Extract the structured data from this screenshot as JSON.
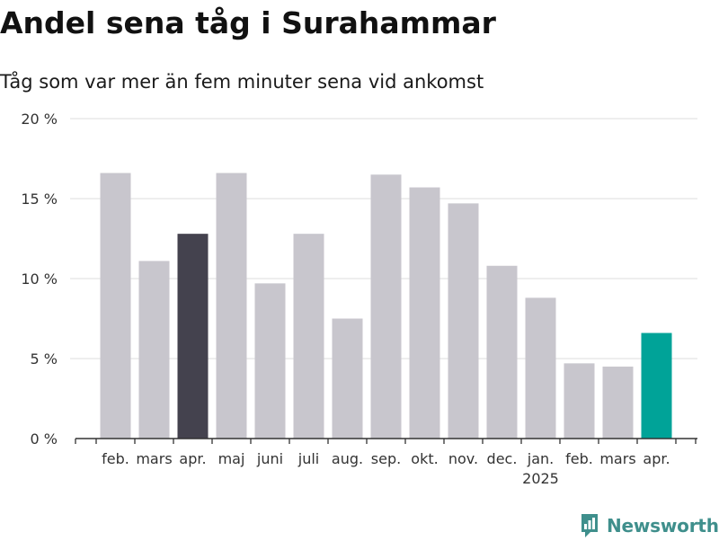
{
  "header": {
    "title": "Andel sena tåg i Surahammar",
    "subtitle": "Tåg som var mer än fem minuter sena vid ankomst"
  },
  "brand": {
    "name": "Newsworthy",
    "icon": "newsworthy-logo-icon"
  },
  "colors": {
    "bar_default": "#c8c6cd",
    "bar_highlight_previous": "#44424e",
    "bar_highlight_current": "#00a398",
    "grid": "#dddddd",
    "axis": "#333333",
    "text": "#333333",
    "brand": "#3f8f8c"
  },
  "chart_data": {
    "type": "bar",
    "title": "Andel sena tåg i Surahammar",
    "subtitle": "Tåg som var mer än fem minuter sena vid ankomst",
    "xlabel": "",
    "ylabel": "",
    "categories": [
      "feb.",
      "mars",
      "apr.",
      "maj",
      "juni",
      "juli",
      "aug.",
      "sep.",
      "okt.",
      "nov.",
      "dec.",
      "jan.",
      "feb.",
      "mars",
      "apr."
    ],
    "category_sublabels": [
      "",
      "",
      "",
      "",
      "",
      "",
      "",
      "",
      "",
      "",
      "",
      "2025",
      "",
      "",
      ""
    ],
    "values": [
      16.6,
      11.1,
      12.8,
      16.6,
      9.7,
      12.8,
      7.5,
      16.5,
      15.7,
      14.7,
      10.8,
      8.8,
      4.7,
      4.5,
      6.6
    ],
    "highlight": [
      "default",
      "default",
      "previous",
      "default",
      "default",
      "default",
      "default",
      "default",
      "default",
      "default",
      "default",
      "default",
      "default",
      "default",
      "current"
    ],
    "ylim": [
      0,
      20
    ],
    "yticks": [
      0,
      5,
      10,
      15,
      20
    ],
    "ytick_labels": [
      "0 %",
      "5 %",
      "10 %",
      "15 %",
      "20 %"
    ],
    "grid": true,
    "legend": "none"
  }
}
